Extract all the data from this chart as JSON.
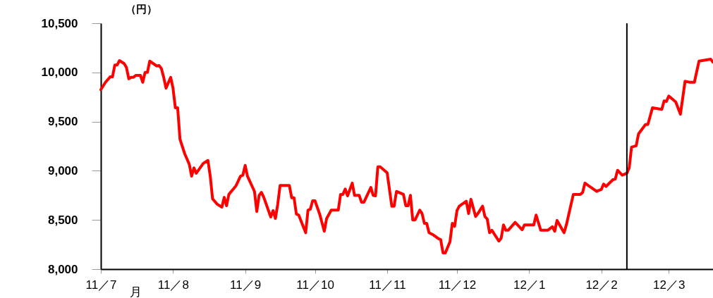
{
  "chart_data": {
    "type": "line",
    "ylabel": "（円）",
    "xlabel": "月",
    "x": [
      "2011-07-01",
      "2011-07-03",
      "2011-07-05",
      "2011-07-06",
      "2011-07-07",
      "2011-07-08",
      "2011-07-09",
      "2011-07-11",
      "2011-07-12",
      "2011-07-13",
      "2011-07-14",
      "2011-07-15",
      "2011-07-16",
      "2011-07-18",
      "2011-07-19",
      "2011-07-20",
      "2011-07-21",
      "2011-07-22",
      "2011-07-25",
      "2011-07-26",
      "2011-07-27",
      "2011-07-28",
      "2011-07-29",
      "2011-07-31",
      "2011-08-01",
      "2011-08-02",
      "2011-08-03",
      "2011-08-04",
      "2011-08-06",
      "2011-08-08",
      "2011-08-09",
      "2011-08-10",
      "2011-08-11",
      "2011-08-14",
      "2011-08-16",
      "2011-08-17",
      "2011-08-18",
      "2011-08-20",
      "2011-08-22",
      "2011-08-23",
      "2011-08-24",
      "2011-08-25",
      "2011-08-28",
      "2011-08-30",
      "2011-08-31",
      "2011-09-01",
      "2011-09-02",
      "2011-09-05",
      "2011-09-06",
      "2011-09-07",
      "2011-09-08",
      "2011-09-09",
      "2011-09-12",
      "2011-09-13",
      "2011-09-14",
      "2011-09-15",
      "2011-09-16",
      "2011-09-20",
      "2011-09-21",
      "2011-09-22",
      "2011-09-23",
      "2011-09-24",
      "2011-09-27",
      "2011-09-28",
      "2011-09-29",
      "2011-09-30",
      "2011-10-01",
      "2011-10-03",
      "2011-10-05",
      "2011-10-06",
      "2011-10-08",
      "2011-10-11",
      "2011-10-12",
      "2011-10-13",
      "2011-10-14",
      "2011-10-15",
      "2011-10-17",
      "2011-10-18",
      "2011-10-20",
      "2011-10-21",
      "2011-10-22",
      "2011-10-25",
      "2011-10-26",
      "2011-10-27",
      "2011-10-28",
      "2011-10-29",
      "2011-11-01",
      "2011-11-03",
      "2011-11-04",
      "2011-11-05",
      "2011-11-08",
      "2011-11-09",
      "2011-11-10",
      "2011-11-11",
      "2011-11-12",
      "2011-11-13",
      "2011-11-15",
      "2011-11-16",
      "2011-11-17",
      "2011-11-18",
      "2011-11-19",
      "2011-11-21",
      "2011-11-23",
      "2011-11-24",
      "2011-11-25",
      "2011-11-26",
      "2011-11-28",
      "2011-11-29",
      "2011-11-30",
      "2011-12-01",
      "2011-12-02",
      "2011-12-05",
      "2011-12-06",
      "2011-12-07",
      "2011-12-09",
      "2011-12-10",
      "2011-12-12",
      "2011-12-13",
      "2011-12-14",
      "2011-12-15",
      "2011-12-16",
      "2011-12-19",
      "2011-12-20",
      "2011-12-21",
      "2011-12-22",
      "2011-12-23",
      "2011-12-26",
      "2011-12-29",
      "2011-12-30",
      "2012-01-03",
      "2012-01-04",
      "2012-01-06",
      "2012-01-09",
      "2012-01-11",
      "2012-01-12",
      "2012-01-13",
      "2012-01-16",
      "2012-01-17",
      "2012-01-20",
      "2012-01-23",
      "2012-01-24",
      "2012-01-25",
      "2012-01-27",
      "2012-01-30",
      "2012-02-01",
      "2012-02-02",
      "2012-02-03",
      "2012-02-06",
      "2012-02-07",
      "2012-02-08",
      "2012-02-10",
      "2012-02-12",
      "2012-02-13",
      "2012-02-14",
      "2012-02-16",
      "2012-02-17",
      "2012-02-20",
      "2012-02-21",
      "2012-02-22",
      "2012-02-23",
      "2012-02-27",
      "2012-02-28",
      "2012-02-29",
      "2012-03-01",
      "2012-03-04",
      "2012-03-06",
      "2012-03-08",
      "2012-03-10",
      "2012-03-12",
      "2012-03-14",
      "2012-03-19",
      "2012-03-20"
    ],
    "series": [
      {
        "color": "#ff0000",
        "values": [
          9825,
          9900,
          9955,
          9955,
          10075,
          10075,
          10120,
          10090,
          10050,
          9935,
          9950,
          9950,
          9970,
          9970,
          9900,
          10000,
          10000,
          10115,
          10065,
          10070,
          10040,
          9950,
          9840,
          9950,
          9840,
          9640,
          9640,
          9320,
          9175,
          9065,
          8945,
          9030,
          8975,
          9075,
          9105,
          8945,
          8715,
          8660,
          8630,
          8730,
          8645,
          8760,
          8845,
          8945,
          8955,
          9055,
          8945,
          8790,
          8585,
          8750,
          8780,
          8730,
          8530,
          8595,
          8515,
          8660,
          8850,
          8850,
          8725,
          8725,
          8560,
          8550,
          8370,
          8600,
          8610,
          8695,
          8695,
          8560,
          8385,
          8515,
          8600,
          8600,
          8760,
          8760,
          8815,
          8745,
          8875,
          8750,
          8750,
          8680,
          8680,
          8830,
          8750,
          8745,
          9040,
          9040,
          8980,
          8640,
          8640,
          8790,
          8760,
          8645,
          8645,
          8750,
          8500,
          8500,
          8600,
          8565,
          8465,
          8465,
          8370,
          8345,
          8310,
          8300,
          8165,
          8165,
          8280,
          8465,
          8435,
          8595,
          8640,
          8690,
          8565,
          8710,
          8535,
          8565,
          8640,
          8535,
          8510,
          8370,
          8395,
          8285,
          8315,
          8450,
          8395,
          8395,
          8475,
          8400,
          8450,
          8450,
          8550,
          8395,
          8395,
          8430,
          8385,
          8495,
          8370,
          8450,
          8760,
          8760,
          8780,
          8875,
          8840,
          8790,
          8810,
          8865,
          8840,
          8910,
          8915,
          9005,
          8955,
          8975,
          9030,
          9240,
          9255,
          9375,
          9470,
          9470,
          9555,
          9640,
          9625,
          9710,
          9705,
          9760,
          9700,
          9575,
          9910,
          9900,
          9900,
          10115,
          10135,
          10105
        ]
      }
    ],
    "xlim": [
      "2011-07-01",
      "2012-03-20"
    ],
    "xticks": [
      {
        "value": "2011-07-01",
        "label": "11／7"
      },
      {
        "value": "2011-08-01",
        "label": "11／8"
      },
      {
        "value": "2011-09-01",
        "label": "11／9"
      },
      {
        "value": "2011-10-01",
        "label": "11／10"
      },
      {
        "value": "2011-11-01",
        "label": "11／11"
      },
      {
        "value": "2011-12-01",
        "label": "11／12"
      },
      {
        "value": "2012-01-01",
        "label": "12／1"
      },
      {
        "value": "2012-02-01",
        "label": "12／2"
      },
      {
        "value": "2012-03-01",
        "label": "12／3"
      }
    ],
    "ylim": [
      8000,
      10500
    ],
    "yticks": [
      {
        "value": 8000,
        "label": "8,000"
      },
      {
        "value": 8500,
        "label": "8,500"
      },
      {
        "value": 9000,
        "label": "9,000"
      },
      {
        "value": 9500,
        "label": "9,500"
      },
      {
        "value": 10000,
        "label": "10,000"
      },
      {
        "value": 10500,
        "label": "10,500"
      }
    ],
    "ref_lines": [
      {
        "axis": "x",
        "value": "2012-02-12",
        "color": "#000000"
      }
    ],
    "grid": false,
    "marker": "none",
    "line_style": "solid"
  }
}
